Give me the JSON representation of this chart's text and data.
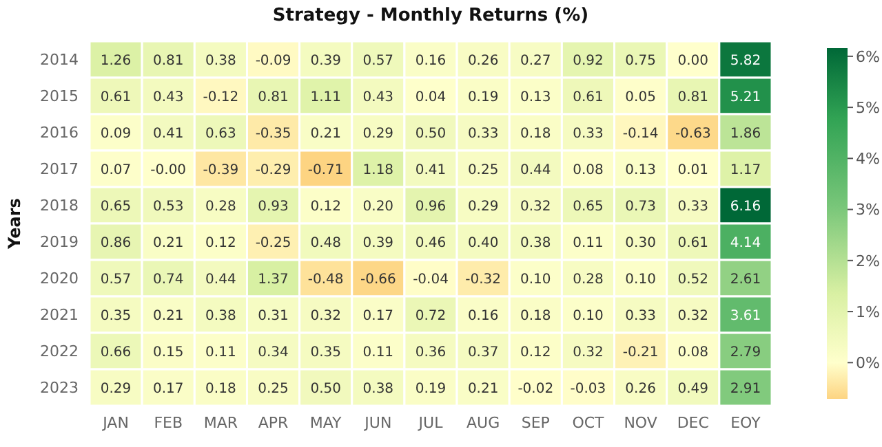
{
  "chart_data": {
    "type": "heatmap",
    "title": "Strategy - Monthly Returns (%)",
    "ylabel": "Years",
    "categories": [
      "JAN",
      "FEB",
      "MAR",
      "APR",
      "MAY",
      "JUN",
      "JUL",
      "AUG",
      "SEP",
      "OCT",
      "NOV",
      "DEC",
      "EOY"
    ],
    "y_categories": [
      "2014",
      "2015",
      "2016",
      "2017",
      "2018",
      "2019",
      "2020",
      "2021",
      "2022",
      "2023"
    ],
    "cells": [
      [
        1.26,
        0.81,
        0.38,
        -0.09,
        0.39,
        0.57,
        0.16,
        0.26,
        0.27,
        0.92,
        0.75,
        0.0,
        5.82
      ],
      [
        0.61,
        0.43,
        -0.12,
        0.81,
        1.11,
        0.43,
        0.04,
        0.19,
        0.13,
        0.61,
        0.05,
        0.81,
        5.21
      ],
      [
        0.09,
        0.41,
        0.63,
        -0.35,
        0.21,
        0.29,
        0.5,
        0.33,
        0.18,
        0.33,
        -0.14,
        -0.63,
        1.86
      ],
      [
        0.07,
        -0.0,
        -0.39,
        -0.29,
        -0.71,
        1.18,
        0.41,
        0.25,
        0.44,
        0.08,
        0.13,
        0.01,
        1.17
      ],
      [
        0.65,
        0.53,
        0.28,
        0.93,
        0.12,
        0.2,
        0.96,
        0.29,
        0.32,
        0.65,
        0.73,
        0.33,
        6.16
      ],
      [
        0.86,
        0.21,
        0.12,
        -0.25,
        0.48,
        0.39,
        0.46,
        0.4,
        0.38,
        0.11,
        0.3,
        0.61,
        4.14
      ],
      [
        0.57,
        0.74,
        0.44,
        1.37,
        -0.48,
        -0.66,
        -0.04,
        -0.32,
        0.1,
        0.28,
        0.1,
        0.52,
        2.61
      ],
      [
        0.35,
        0.21,
        0.38,
        0.31,
        0.32,
        0.17,
        0.72,
        0.16,
        0.18,
        0.1,
        0.33,
        0.32,
        3.61
      ],
      [
        0.66,
        0.15,
        0.11,
        0.34,
        0.35,
        0.11,
        0.36,
        0.37,
        0.12,
        0.32,
        -0.21,
        0.08,
        2.79
      ],
      [
        0.29,
        0.17,
        0.18,
        0.25,
        0.5,
        0.38,
        0.19,
        0.21,
        -0.02,
        -0.03,
        0.26,
        0.49,
        2.91
      ]
    ],
    "cell_labels": [
      [
        "1.26",
        "0.81",
        "0.38",
        "-0.09",
        "0.39",
        "0.57",
        "0.16",
        "0.26",
        "0.27",
        "0.92",
        "0.75",
        "0.00",
        "5.82"
      ],
      [
        "0.61",
        "0.43",
        "-0.12",
        "0.81",
        "1.11",
        "0.43",
        "0.04",
        "0.19",
        "0.13",
        "0.61",
        "0.05",
        "0.81",
        "5.21"
      ],
      [
        "0.09",
        "0.41",
        "0.63",
        "-0.35",
        "0.21",
        "0.29",
        "0.50",
        "0.33",
        "0.18",
        "0.33",
        "-0.14",
        "-0.63",
        "1.86"
      ],
      [
        "0.07",
        "-0.00",
        "-0.39",
        "-0.29",
        "-0.71",
        "1.18",
        "0.41",
        "0.25",
        "0.44",
        "0.08",
        "0.13",
        "0.01",
        "1.17"
      ],
      [
        "0.65",
        "0.53",
        "0.28",
        "0.93",
        "0.12",
        "0.20",
        "0.96",
        "0.29",
        "0.32",
        "0.65",
        "0.73",
        "0.33",
        "6.16"
      ],
      [
        "0.86",
        "0.21",
        "0.12",
        "-0.25",
        "0.48",
        "0.39",
        "0.46",
        "0.40",
        "0.38",
        "0.11",
        "0.30",
        "0.61",
        "4.14"
      ],
      [
        "0.57",
        "0.74",
        "0.44",
        "1.37",
        "-0.48",
        "-0.66",
        "-0.04",
        "-0.32",
        "0.10",
        "0.28",
        "0.10",
        "0.52",
        "2.61"
      ],
      [
        "0.35",
        "0.21",
        "0.38",
        "0.31",
        "0.32",
        "0.17",
        "0.72",
        "0.16",
        "0.18",
        "0.10",
        "0.33",
        "0.32",
        "3.61"
      ],
      [
        "0.66",
        "0.15",
        "0.11",
        "0.34",
        "0.35",
        "0.11",
        "0.36",
        "0.37",
        "0.12",
        "0.32",
        "-0.21",
        "0.08",
        "2.79"
      ],
      [
        "0.29",
        "0.17",
        "0.18",
        "0.25",
        "0.50",
        "0.38",
        "0.19",
        "0.21",
        "-0.02",
        "-0.03",
        "0.26",
        "0.49",
        "2.91"
      ]
    ],
    "clim": [
      -0.71,
      6.16
    ],
    "cticks": [
      {
        "value": 0,
        "label": "0%"
      },
      {
        "value": 1,
        "label": "1%"
      },
      {
        "value": 2,
        "label": "2%"
      },
      {
        "value": 3,
        "label": "3%"
      },
      {
        "value": 4,
        "label": "4%"
      },
      {
        "value": 5,
        "label": "5%"
      },
      {
        "value": 6,
        "label": "6%"
      }
    ]
  }
}
